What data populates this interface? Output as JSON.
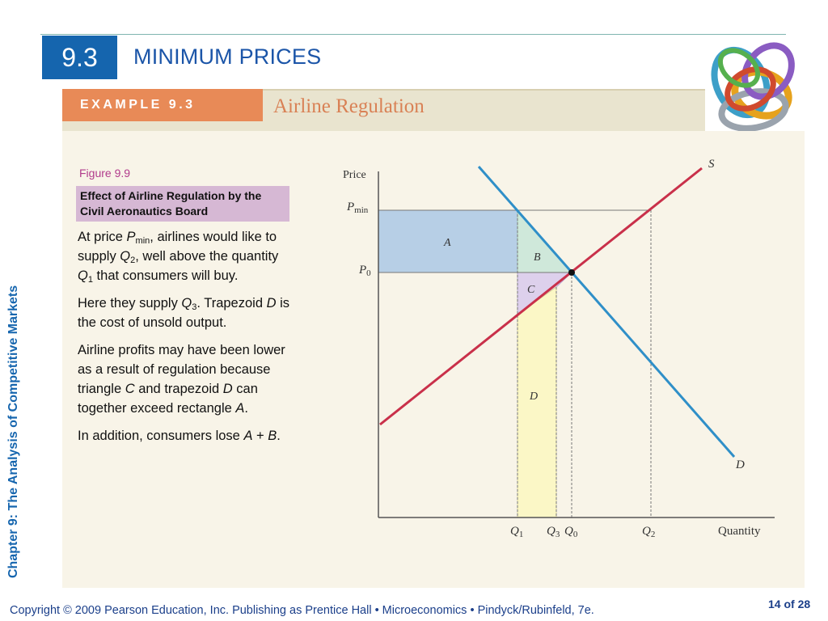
{
  "header": {
    "section_number": "9.3",
    "title": "MINIMUM PRICES"
  },
  "sidebar": {
    "chapter": "Chapter 9:  The Analysis of Competitive Markets"
  },
  "example": {
    "tag": "EXAMPLE 9.3",
    "name": "Airline Regulation"
  },
  "figure": {
    "number": "Figure 9.9",
    "caption": "Effect of Airline Regulation by the Civil Aeronautics Board"
  },
  "text": {
    "p1": [
      "At price ",
      "P",
      "min",
      ", airlines would like to supply ",
      "Q",
      "2",
      ", well above the quantity ",
      "Q",
      "1",
      " that consumers will buy."
    ],
    "p2": [
      "Here they supply ",
      "Q",
      "3",
      ". Trapezoid ",
      "D",
      " is the cost of unsold output."
    ],
    "p3": [
      "Airline profits may have been lower as a result of regulation because triangle ",
      "C",
      " and trapezoid ",
      "D",
      " can together exceed rectangle ",
      "A",
      "."
    ],
    "p4": [
      "In addition, consumers lose ",
      "A",
      " + ",
      "B",
      "."
    ]
  },
  "diagram": {
    "y_axis_label": "Price",
    "x_axis_label": "Quantity",
    "y_ticks": [
      {
        "main": "P",
        "sub": "min"
      },
      {
        "main": "P",
        "sub": "0"
      }
    ],
    "x_ticks": [
      {
        "main": "Q",
        "sub": "1"
      },
      {
        "main": "Q",
        "sub": "3"
      },
      {
        "main": "Q",
        "sub": "0"
      },
      {
        "main": "Q",
        "sub": "2"
      }
    ],
    "curves": {
      "supply": "S",
      "demand": "D"
    },
    "regions": [
      "A",
      "B",
      "C",
      "D"
    ],
    "colors": {
      "supply": "#c9304a",
      "demand": "#2f8fc8",
      "region_A": "#b7cfe6",
      "region_B": "#cfe8da",
      "region_C": "#ddd0ec",
      "region_D": "#fbf7c6"
    }
  },
  "footer": {
    "copyright": "Copyright © 2009 Pearson Education, Inc. Publishing as Prentice Hall  •  Microeconomics  •  Pindyck/Rubinfeld, 7e.",
    "page": "14 of 28"
  }
}
